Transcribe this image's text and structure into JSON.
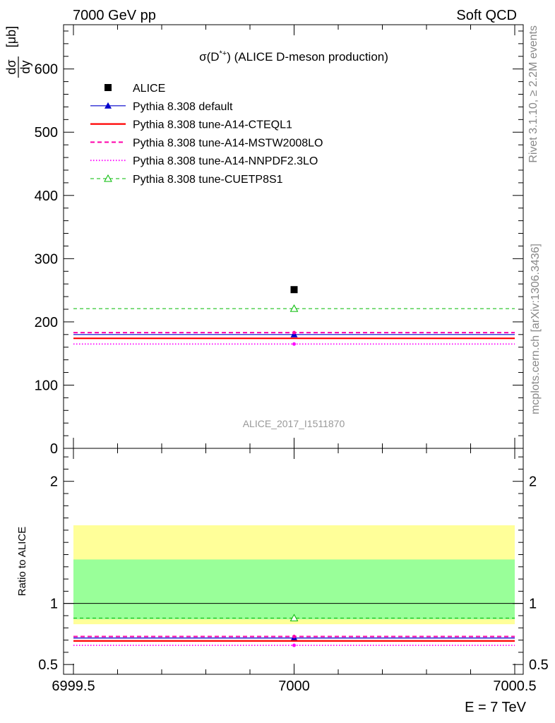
{
  "header": {
    "left": "7000 GeV pp",
    "right": "Soft QCD"
  },
  "side_labels": {
    "rivet": "Rivet 3.1.10, ≥ 2.2M events",
    "mcplots": "mcplots.cern.ch [arXiv:1306.3436]"
  },
  "chart_data": [
    {
      "type": "scatter",
      "title": "σ(D*+) (ALICE D-meson production)",
      "title_main": "σ(D",
      "title_sup": "*+",
      "title_rest": ") (ALICE D-meson production)",
      "ylabel": "dσ/dy [μb]",
      "ylabel_num": "dσ",
      "ylabel_den": "dy",
      "ylabel_unit": "[μb]",
      "watermark": "ALICE_2017_I1511870",
      "xlim": [
        6999.5,
        7000.5
      ],
      "ylim": [
        0,
        670
      ],
      "yticks": [
        0,
        100,
        200,
        300,
        400,
        500,
        600
      ],
      "ytick_labels": [
        "0",
        "100",
        "200",
        "300",
        "400",
        "500",
        "600"
      ],
      "legend_position": "top-left",
      "series": [
        {
          "name": "ALICE",
          "style": "data",
          "marker": "square",
          "color": "#000000",
          "x": [
            7000
          ],
          "y": [
            251
          ]
        },
        {
          "name": "Pythia 8.308 default",
          "style": "solid",
          "marker": "triangle",
          "color": "#0000cc",
          "x": [
            7000
          ],
          "y": [
            180
          ]
        },
        {
          "name": "Pythia 8.308 tune-A14-CTEQL1",
          "style": "solid-thick",
          "marker": "none",
          "color": "#ff0000",
          "x": [
            7000
          ],
          "y": [
            174
          ]
        },
        {
          "name": "Pythia 8.308 tune-A14-MSTW2008LO",
          "style": "dashed",
          "marker": "dot",
          "color": "#ff00aa",
          "x": [
            7000
          ],
          "y": [
            183
          ]
        },
        {
          "name": "Pythia 8.308 tune-A14-NNPDF2.3LO",
          "style": "dotted",
          "marker": "dot",
          "color": "#ff00ff",
          "x": [
            7000
          ],
          "y": [
            165
          ]
        },
        {
          "name": "Pythia 8.308 tune-CUETP8S1",
          "style": "dashed-thin",
          "marker": "open-triangle",
          "color": "#00bb00",
          "x": [
            7000
          ],
          "y": [
            221
          ]
        }
      ]
    },
    {
      "type": "scatter",
      "ylabel": "Ratio to ALICE",
      "xlabel": "E = 7 TeV",
      "xlim": [
        6999.5,
        7000.5
      ],
      "xticks": [
        6999.5,
        7000,
        7000.5
      ],
      "xtick_labels": [
        "6999.5",
        "7000",
        "7000.5"
      ],
      "ylim": [
        0.42,
        2.27
      ],
      "yticks": [
        0.5,
        1,
        2
      ],
      "ytick_labels": [
        "0.5",
        "1",
        "2"
      ],
      "bands": [
        {
          "name": "yellow",
          "color": "#ffff99",
          "low": 0.83,
          "high": 1.64
        },
        {
          "name": "green",
          "color": "#99ff99",
          "low": 0.87,
          "high": 1.36
        }
      ],
      "series": [
        {
          "name": "Pythia 8.308 default",
          "color": "#0000cc",
          "x": [
            7000
          ],
          "y": [
            0.717
          ]
        },
        {
          "name": "Pythia 8.308 tune-A14-CTEQL1",
          "color": "#ff0000",
          "x": [
            7000
          ],
          "y": [
            0.693
          ]
        },
        {
          "name": "Pythia 8.308 tune-A14-MSTW2008LO",
          "color": "#ff00aa",
          "x": [
            7000
          ],
          "y": [
            0.729
          ]
        },
        {
          "name": "Pythia 8.308 tune-A14-NNPDF2.3LO",
          "color": "#ff00ff",
          "x": [
            7000
          ],
          "y": [
            0.657
          ]
        },
        {
          "name": "Pythia 8.308 tune-CUETP8S1",
          "color": "#00bb00",
          "x": [
            7000
          ],
          "y": [
            0.88
          ]
        }
      ]
    }
  ]
}
